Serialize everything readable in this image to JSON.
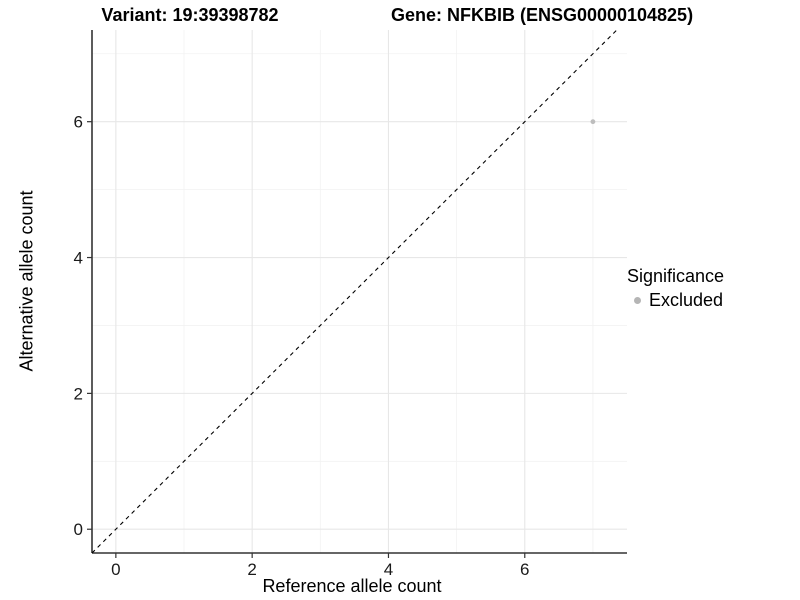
{
  "chart_data": {
    "type": "scatter",
    "title_left": "Variant: 19:39398782",
    "title_right": "Gene: NFKBIB (ENSG00000104825)",
    "xlabel": "Reference allele count",
    "ylabel": "Alternative allele count",
    "xlim": [
      -0.35,
      7.5
    ],
    "ylim": [
      -0.35,
      7.35
    ],
    "xticks": [
      0,
      2,
      4,
      6
    ],
    "yticks": [
      0,
      2,
      4,
      6
    ],
    "xtick_labels": [
      "0",
      "2",
      "4",
      "6"
    ],
    "ytick_labels": [
      "0",
      "2",
      "4",
      "6"
    ],
    "minor_xticks": [
      1,
      3,
      5,
      7
    ],
    "minor_yticks": [
      1,
      3,
      5,
      7
    ],
    "grid": true,
    "points": [
      {
        "x": 7,
        "y": 6,
        "series": "Excluded"
      }
    ],
    "reference_line": {
      "kind": "identity",
      "style": "dashed",
      "color": "#000000"
    },
    "legend": {
      "title": "Significance",
      "position": "right",
      "entries": [
        {
          "label": "Excluded",
          "color": "#b5b5b5",
          "marker": "circle"
        }
      ]
    },
    "colors": {
      "point": "#bdbdbd",
      "grid_major": "#e7e7e7",
      "grid_minor": "#f2f2f2",
      "axis_line": "#333333",
      "tick": "#333333",
      "tick_label": "#1a1a1a",
      "background": "#ffffff"
    }
  }
}
